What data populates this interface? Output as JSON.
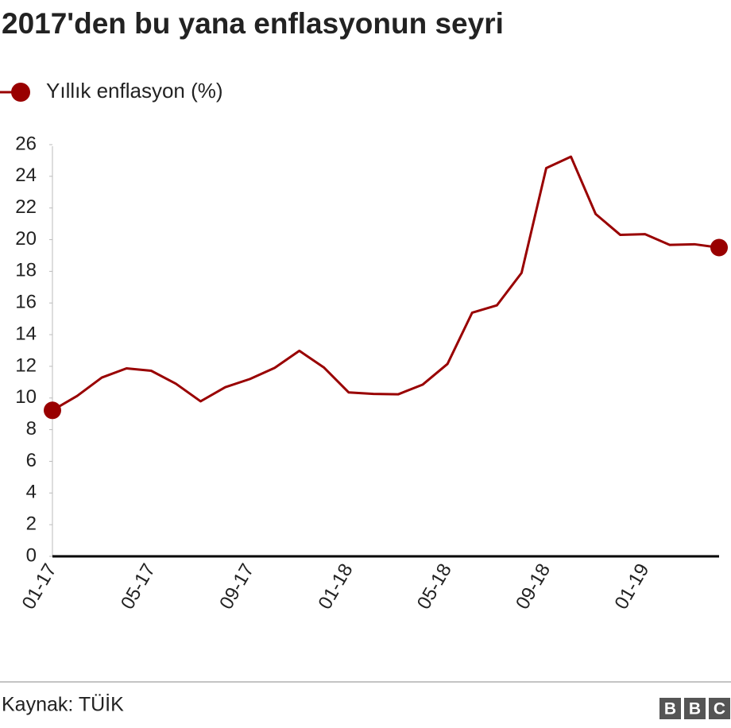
{
  "chart_data": {
    "type": "line",
    "title": "2017'den bu yana enflasyonun seyri",
    "source": "Kaynak: TÜİK",
    "logo": [
      "B",
      "B",
      "C"
    ],
    "categories": [
      "01-17",
      null,
      null,
      null,
      "05-17",
      null,
      null,
      null,
      "09-17",
      null,
      null,
      null,
      "01-18",
      null,
      null,
      null,
      "05-18",
      null,
      null,
      null,
      "09-18",
      null,
      null,
      null,
      "01-19",
      null,
      null,
      null
    ],
    "series": [
      {
        "name": "Yıllık enflasyon (%)",
        "color": "#990000",
        "values": [
          9.22,
          10.13,
          11.29,
          11.87,
          11.72,
          10.9,
          9.79,
          10.68,
          11.2,
          11.9,
          12.98,
          11.92,
          10.35,
          10.26,
          10.23,
          10.85,
          12.15,
          15.39,
          15.85,
          17.9,
          24.52,
          25.24,
          21.62,
          20.3,
          20.35,
          19.67,
          19.71,
          19.5
        ]
      }
    ],
    "ylim": [
      0,
      26
    ],
    "yticks": [
      0,
      2,
      4,
      6,
      8,
      10,
      12,
      14,
      16,
      18,
      20,
      22,
      24,
      26
    ]
  }
}
